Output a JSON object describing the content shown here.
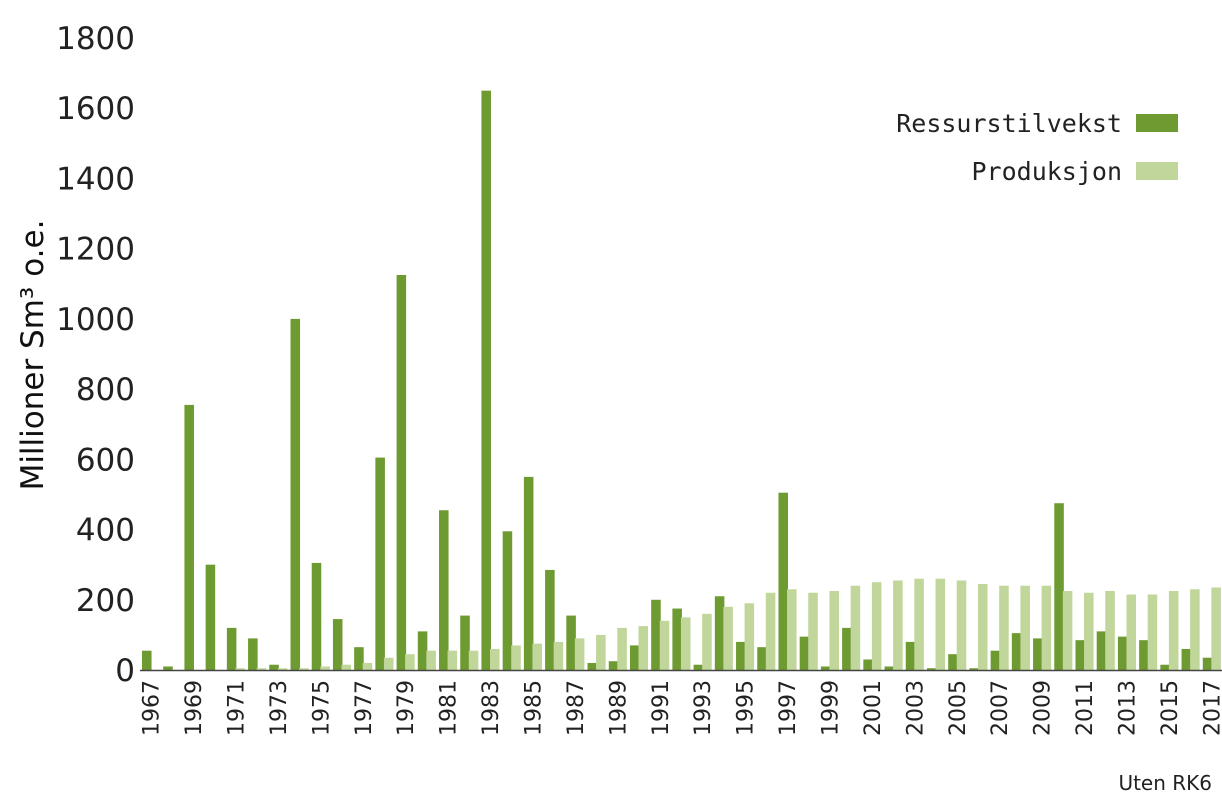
{
  "chart_data": {
    "type": "bar",
    "ylabel": "Millioner Sm³ o.e.",
    "ylim": [
      0,
      1800
    ],
    "yticks": [
      "0",
      "200",
      "400",
      "600",
      "800",
      "1000",
      "1200",
      "1400",
      "1600",
      "1800"
    ],
    "categories": [
      1967,
      1968,
      1969,
      1970,
      1971,
      1972,
      1973,
      1974,
      1975,
      1976,
      1977,
      1978,
      1979,
      1980,
      1981,
      1982,
      1983,
      1984,
      1985,
      1986,
      1987,
      1988,
      1989,
      1990,
      1991,
      1992,
      1993,
      1994,
      1995,
      1996,
      1997,
      1998,
      1999,
      2000,
      2001,
      2002,
      2003,
      2004,
      2005,
      2006,
      2007,
      2008,
      2009,
      2010,
      2011,
      2012,
      2013,
      2014,
      2015,
      2016,
      2017
    ],
    "xticks_shown": [
      "1967",
      "1969",
      "1971",
      "1973",
      "1975",
      "1977",
      "1979",
      "1981",
      "1983",
      "1985",
      "1987",
      "1989",
      "1991",
      "1993",
      "1995",
      "1997",
      "1999",
      "2001",
      "2003",
      "2005",
      "2007",
      "2009",
      "2011",
      "2013",
      "2015",
      "2017"
    ],
    "series": [
      {
        "name": "Ressurstilvekst",
        "color": "#6e9a32",
        "values": [
          55,
          10,
          755,
          300,
          120,
          90,
          15,
          1000,
          305,
          145,
          65,
          605,
          1125,
          110,
          455,
          155,
          1650,
          395,
          550,
          285,
          155,
          20,
          25,
          70,
          200,
          175,
          15,
          210,
          80,
          65,
          505,
          95,
          10,
          120,
          30,
          10,
          80,
          5,
          45,
          5,
          55,
          105,
          90,
          475,
          85,
          110,
          95,
          85,
          15,
          60,
          35
        ]
      },
      {
        "name": "Produksjon",
        "color": "#c0d69a",
        "values": [
          0,
          0,
          0,
          0,
          5,
          5,
          5,
          5,
          10,
          15,
          20,
          35,
          45,
          55,
          55,
          55,
          60,
          70,
          75,
          80,
          90,
          100,
          120,
          125,
          140,
          150,
          160,
          180,
          190,
          220,
          230,
          220,
          225,
          240,
          250,
          255,
          260,
          260,
          255,
          245,
          240,
          240,
          240,
          225,
          220,
          225,
          215,
          215,
          225,
          230,
          235
        ]
      }
    ],
    "legend_position": "top-right",
    "note": "Uten RK6"
  }
}
